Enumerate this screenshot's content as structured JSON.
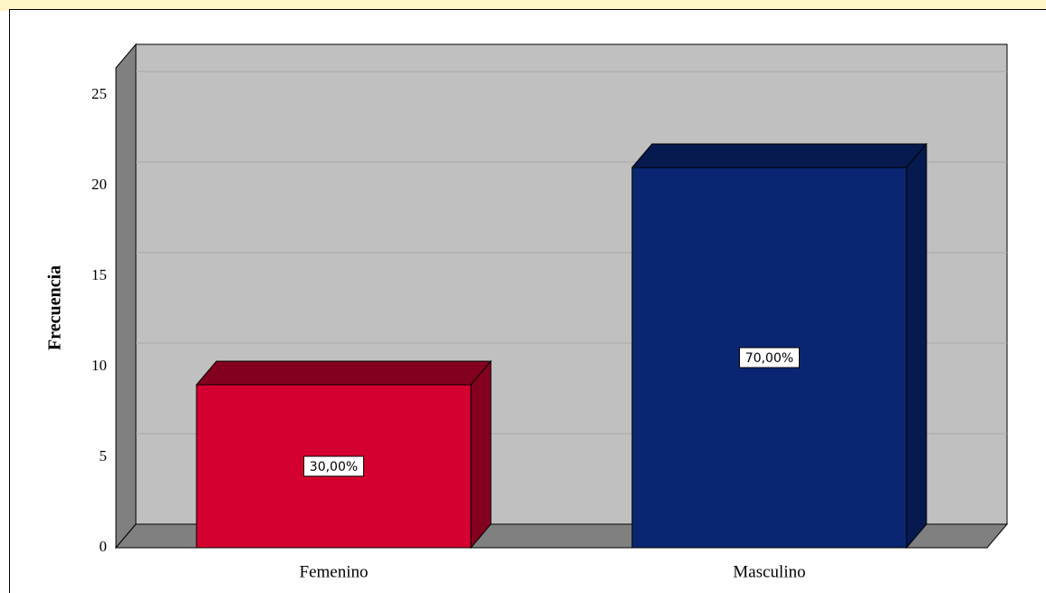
{
  "chart_data": {
    "type": "bar3d",
    "y_label": "Frecuencia",
    "categories": [
      "Femenino",
      "Masculino"
    ],
    "values": [
      9,
      21
    ],
    "bar_labels": [
      "30,00%",
      "70,00%"
    ],
    "colors": [
      "#d4002f",
      "#0a2672"
    ],
    "side_colors": [
      "#84001f",
      "#061a4f"
    ],
    "ylim": [
      0,
      26.5
    ],
    "yticks": [
      0,
      5,
      10,
      15,
      20,
      25
    ],
    "grid": true
  }
}
